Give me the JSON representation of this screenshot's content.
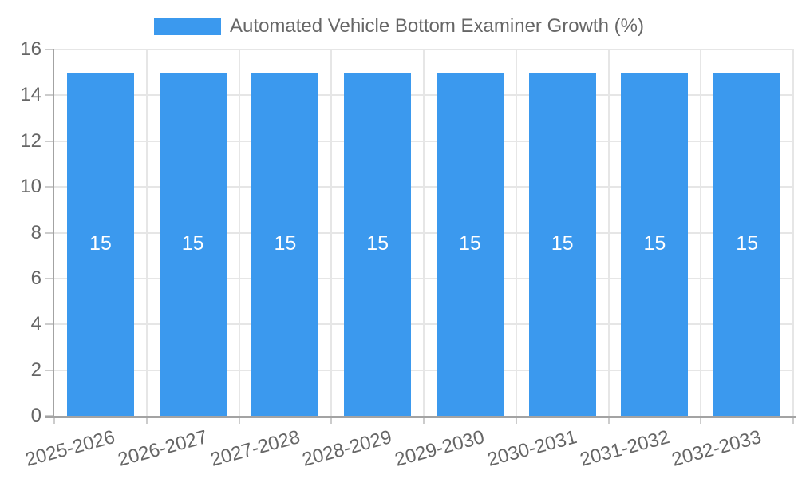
{
  "chart_data": {
    "type": "bar",
    "legend_position": "top",
    "grid": true,
    "categories": [
      "2025-2026",
      "2026-2027",
      "2027-2028",
      "2028-2029",
      "2029-2030",
      "2030-2031",
      "2031-2032",
      "2032-2033"
    ],
    "series": [
      {
        "name": "Automated Vehicle Bottom Examiner Growth (%)",
        "values": [
          15,
          15,
          15,
          15,
          15,
          15,
          15,
          15
        ]
      }
    ],
    "bar_value_labels": [
      "15",
      "15",
      "15",
      "15",
      "15",
      "15",
      "15",
      "15"
    ],
    "xlabel": "",
    "ylabel": "",
    "ylim": [
      0,
      16
    ],
    "yticks": [
      0,
      2,
      4,
      6,
      8,
      10,
      12,
      14,
      16
    ],
    "colors": {
      "bar": "#3b99ee",
      "bar_label": "#ffffff",
      "axis": "#a3a3a3",
      "gridline": "#e6e6e6",
      "tick": "#cccccc",
      "tick_label": "#666666",
      "legend_text": "#666666"
    }
  }
}
